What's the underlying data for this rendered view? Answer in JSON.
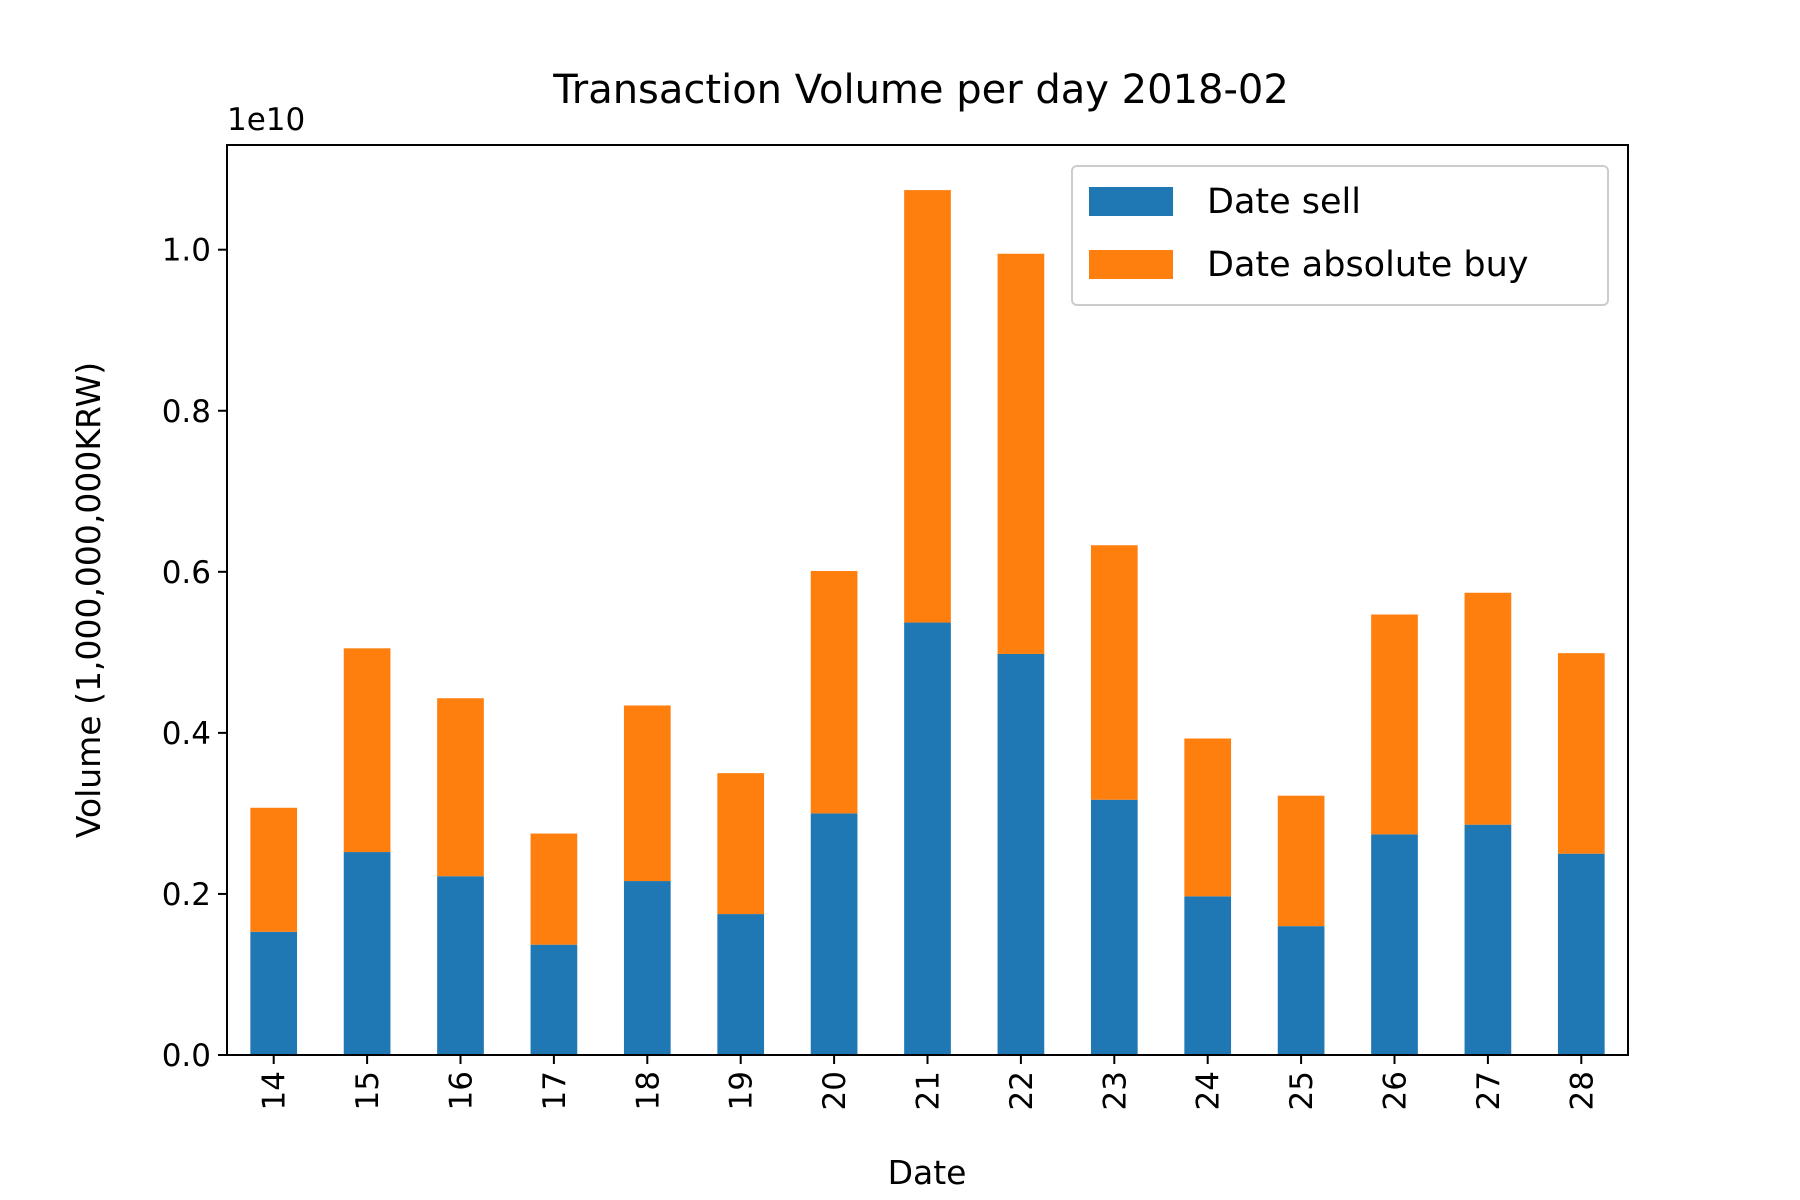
{
  "chart_data": {
    "type": "bar",
    "stacked": true,
    "title": "Transaction Volume per day 2018-02",
    "xlabel": "Date",
    "ylabel": "Volume (1,000,000,000KRW)",
    "offset_text": "1e10",
    "y_scale_factor": 10000000000,
    "ylim": [
      0,
      1.13
    ],
    "yticks": [
      "0.0",
      "0.2",
      "0.4",
      "0.6",
      "0.8",
      "1.0"
    ],
    "categories": [
      "14",
      "15",
      "16",
      "17",
      "18",
      "19",
      "20",
      "21",
      "22",
      "23",
      "24",
      "25",
      "26",
      "27",
      "28"
    ],
    "series": [
      {
        "name": "Date sell",
        "color": "#1f77b4",
        "values": [
          0.153,
          0.252,
          0.222,
          0.137,
          0.216,
          0.175,
          0.3,
          0.537,
          0.498,
          0.317,
          0.197,
          0.16,
          0.274,
          0.286,
          0.25
        ]
      },
      {
        "name": "Date absolute buy",
        "color": "#ff7f0e",
        "values": [
          0.154,
          0.253,
          0.221,
          0.138,
          0.218,
          0.175,
          0.301,
          0.537,
          0.497,
          0.316,
          0.196,
          0.162,
          0.273,
          0.288,
          0.249
        ]
      }
    ],
    "legend_position": "top-right",
    "grid": false
  }
}
